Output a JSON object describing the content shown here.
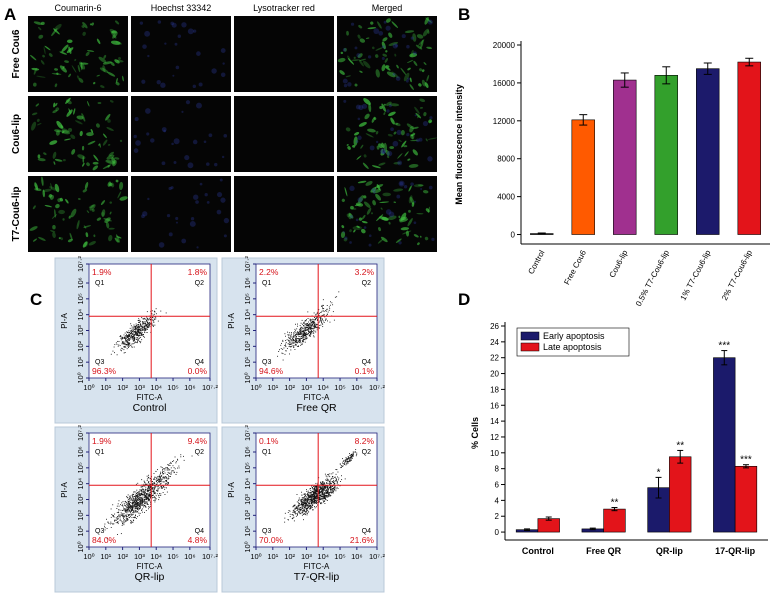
{
  "panel_labels": [
    "A",
    "B",
    "C",
    "D"
  ],
  "microscopy": {
    "columns": [
      "Coumarin-6",
      "Hoechst 33342",
      "Lysotracker red",
      "Merged"
    ],
    "rows": [
      "Free Cou6",
      "Cou6-lip",
      "T7-Cou6-lip"
    ]
  },
  "chart_data": [
    {
      "type": "bar",
      "y_label": "Mean fluorescence intensity",
      "categories": [
        "Control",
        "Free Cou6",
        "Cou6-lip",
        "0.5% T7-Cou6-lip",
        "1% T7-Cou6-lip",
        "2% T7-Cou6-lip"
      ],
      "values": [
        100,
        12100,
        16300,
        16800,
        17500,
        18200
      ],
      "errors": [
        60,
        550,
        750,
        900,
        600,
        400
      ],
      "colors": [
        "#000000",
        "#ff5a00",
        "#a0308f",
        "#33a02c",
        "#1c1a6b",
        "#e3141a"
      ],
      "ylim": [
        -1000,
        20000
      ],
      "yticks": [
        0,
        4000,
        8000,
        12000,
        16000,
        20000
      ]
    },
    {
      "type": "grouped_bar",
      "y_label": "% Cells",
      "categories": [
        "Control",
        "Free QR",
        "QR-lip",
        "17-QR-lip"
      ],
      "series": [
        {
          "name": "Early apoptosis",
          "color": "#1b1a6b",
          "values": [
            0.3,
            0.4,
            5.6,
            22.0
          ],
          "errors": [
            0.1,
            0.1,
            1.3,
            0.9
          ],
          "annotations": [
            null,
            null,
            "*",
            "***"
          ]
        },
        {
          "name": "Late apoptosis",
          "color": "#e3141a",
          "values": [
            1.7,
            2.9,
            9.5,
            8.3
          ],
          "errors": [
            0.2,
            0.2,
            0.8,
            0.2
          ],
          "annotations": [
            null,
            "**",
            "**",
            "***"
          ]
        }
      ],
      "ylim": [
        -1,
        26
      ],
      "yticks": [
        0,
        2,
        4,
        6,
        8,
        10,
        12,
        14,
        16,
        18,
        20,
        22,
        24,
        26
      ],
      "legend": "upper-left"
    }
  ],
  "flow_plots": {
    "x_label": "FITC-A",
    "y_label": "PI-A",
    "ticks": [
      {
        "value": 0,
        "label": "10⁰"
      },
      {
        "value": 1,
        "label": "10¹"
      },
      {
        "value": 2,
        "label": "10²"
      },
      {
        "value": 3,
        "label": "10³"
      },
      {
        "value": 4,
        "label": "10⁴"
      },
      {
        "value": 5,
        "label": "10⁵"
      },
      {
        "value": 6,
        "label": "10⁶"
      },
      {
        "value": 7.2,
        "label": "10⁷·²"
      }
    ],
    "quadrants": [
      "Q1",
      "Q2",
      "Q3",
      "Q4"
    ],
    "plots": [
      {
        "title": "Control",
        "percentages": [
          "1.9%",
          "1.8%",
          "96.3%",
          "0.0%"
        ]
      },
      {
        "title": "Free QR",
        "percentages": [
          "2.2%",
          "3.2%",
          "94.6%",
          "0.1%"
        ]
      },
      {
        "title": "QR-lip",
        "percentages": [
          "1.9%",
          "9.4%",
          "84.0%",
          "4.8%"
        ]
      },
      {
        "title": "T7-QR-lip",
        "percentages": [
          "0.1%",
          "8.2%",
          "70.0%",
          "21.6%"
        ]
      }
    ]
  }
}
